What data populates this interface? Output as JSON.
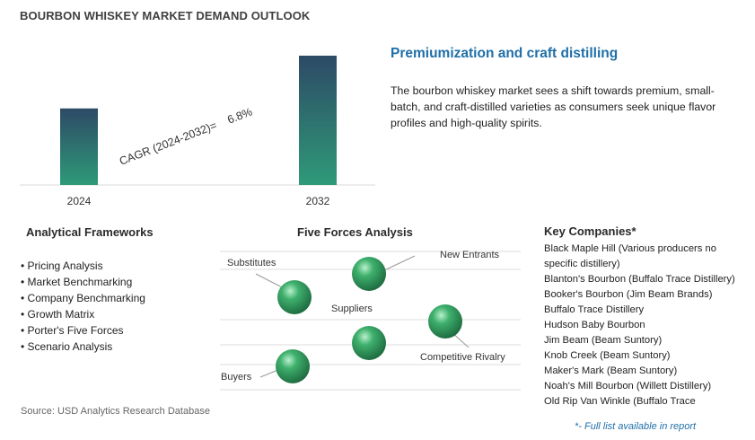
{
  "title": "BOURBON WHISKEY MARKET DEMAND OUTLOOK",
  "chart_data": {
    "type": "bar",
    "categories": [
      "2024",
      "2032"
    ],
    "values": [
      0.592,
      1.0
    ],
    "value_note": "relative heights; no values printed",
    "annotation": "CAGR (2024-2032)=    6.8%",
    "colors": {
      "bar_top": "#2d4a66",
      "bar_bottom": "#2e9a78"
    }
  },
  "headline": "Premiumization and craft distilling",
  "description": "The bourbon whiskey market sees a shift towards premium, small-batch, and craft-distilled varieties as consumers seek unique flavor profiles and high-quality spirits.",
  "frameworks": {
    "heading": "Analytical Frameworks",
    "items": [
      "Pricing Analysis",
      "Market Benchmarking",
      "Company Benchmarking",
      "Growth Matrix",
      "Porter's Five Forces",
      "Scenario Analysis"
    ]
  },
  "five_forces": {
    "heading": "Five Forces Analysis",
    "labels": {
      "substitutes": "Substitutes",
      "new_entrants": "New Entrants",
      "suppliers": "Suppliers",
      "competitive_rivalry": "Competitive Rivalry",
      "buyers": "Buyers"
    },
    "sphere_color": "#2e9a5a"
  },
  "companies": {
    "heading": "Key Companies*",
    "items": [
      "Black Maple Hill (Various producers no specific distillery)",
      "Blanton's Bourbon (Buffalo Trace Distillery)",
      "Booker's Bourbon (Jim Beam Brands)",
      "Buffalo Trace Distillery",
      "Hudson Baby Bourbon",
      "Jim Beam (Beam Suntory)",
      "Knob Creek (Beam Suntory)",
      "Maker's Mark (Beam Suntory)",
      "Noah's Mill Bourbon (Willett Distillery)",
      "Old Rip Van Winkle (Buffalo Trace"
    ]
  },
  "source": "Source: USD Analytics Research Database",
  "footnote": "*- Full list available in report"
}
